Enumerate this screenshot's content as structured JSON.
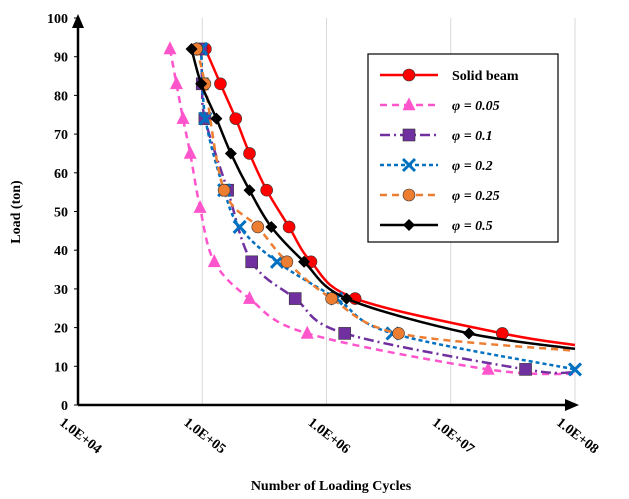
{
  "chart_data": {
    "type": "line",
    "title": "",
    "xlabel": "Number of Loading Cycles",
    "ylabel": "Load (ton)",
    "xscale": "log",
    "xlim": [
      10000,
      100000000
    ],
    "ylim": [
      0,
      100
    ],
    "xticks": [
      "1.0E+04",
      "1.0E+05",
      "1.0E+06",
      "1.0E+07",
      "1.0E+08"
    ],
    "yticks": [
      "0",
      "10",
      "20",
      "30",
      "40",
      "50",
      "60",
      "70",
      "80",
      "90",
      "100"
    ],
    "grid": "vertical",
    "legend_position": "top-right",
    "series": [
      {
        "name": "Solid beam",
        "color": "#ff0000",
        "marker": "circle",
        "dash": "solid",
        "points": [
          [
            106000,
            92
          ],
          [
            140000,
            83
          ],
          [
            186000,
            74
          ],
          [
            240000,
            65
          ],
          [
            330000,
            55.5
          ],
          [
            500000,
            46
          ],
          [
            750000,
            37
          ],
          [
            1700000,
            27.5
          ],
          [
            26000000,
            18.5
          ],
          [
            100000000,
            15.5
          ]
        ]
      },
      {
        "name": "φ = 0.05",
        "color": "#ff55cc",
        "marker": "triangle",
        "dash": "dashed",
        "points": [
          [
            55000,
            92
          ],
          [
            62000,
            83
          ],
          [
            70000,
            74
          ],
          [
            80000,
            65
          ],
          [
            96000,
            51
          ],
          [
            125000,
            37
          ],
          [
            240000,
            27.5
          ],
          [
            700000,
            18.5
          ],
          [
            20000000,
            9.2
          ],
          [
            100000000,
            8
          ]
        ]
      },
      {
        "name": "φ = 0.1",
        "color": "#7030a0",
        "marker": "square",
        "dash": "dashdot",
        "points": [
          [
            98000,
            92
          ],
          [
            100000,
            83
          ],
          [
            105000,
            74
          ],
          [
            160000,
            55.5
          ],
          [
            250000,
            37
          ],
          [
            560000,
            27.5
          ],
          [
            1400000,
            18.5
          ],
          [
            40000000,
            9.2
          ],
          [
            100000000,
            8.5
          ]
        ]
      },
      {
        "name": "φ = 0.2",
        "color": "#0070c0",
        "marker": "x",
        "dash": "dotted",
        "points": [
          [
            98000,
            92
          ],
          [
            106000,
            74
          ],
          [
            150000,
            55.5
          ],
          [
            200000,
            46
          ],
          [
            400000,
            37
          ],
          [
            1200000,
            27.5
          ],
          [
            3400000,
            18.5
          ],
          [
            100000000,
            9.2
          ]
        ]
      },
      {
        "name": "φ = 0.25",
        "color": "#ed7d31",
        "marker": "circle",
        "dash": "dashed",
        "points": [
          [
            90000,
            92
          ],
          [
            105000,
            83
          ],
          [
            150000,
            55.5
          ],
          [
            280000,
            46
          ],
          [
            480000,
            37
          ],
          [
            1100000,
            27.5
          ],
          [
            3800000,
            18.5
          ],
          [
            100000000,
            14
          ]
        ]
      },
      {
        "name": "φ = 0.5",
        "color": "#000000",
        "marker": "diamond",
        "dash": "solid",
        "points": [
          [
            82000,
            92
          ],
          [
            98000,
            83
          ],
          [
            130000,
            74
          ],
          [
            170000,
            65
          ],
          [
            240000,
            55.5
          ],
          [
            360000,
            46
          ],
          [
            660000,
            37
          ],
          [
            1450000,
            27.5
          ],
          [
            14000000,
            18.5
          ],
          [
            100000000,
            14.5
          ]
        ]
      }
    ]
  }
}
